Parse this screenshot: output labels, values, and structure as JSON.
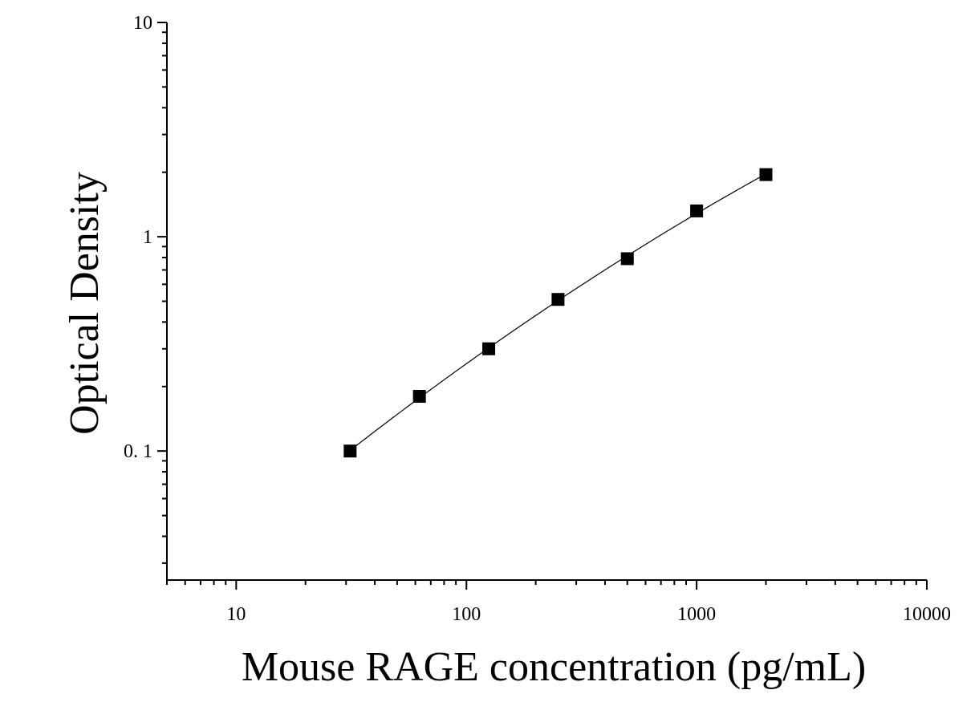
{
  "chart_data": {
    "type": "scatter",
    "xlabel": "Mouse RAGE concentration (pg/mL)",
    "ylabel": "Optical Density",
    "x_scale": "log",
    "y_scale": "log",
    "xlim": [
      5,
      10000
    ],
    "ylim": [
      0.025,
      10
    ],
    "x_ticks": [
      10,
      100,
      1000,
      10000
    ],
    "x_tick_labels": [
      "10",
      "100",
      "1000",
      "10000"
    ],
    "y_ticks": [
      0.1,
      1,
      10
    ],
    "y_tick_labels": [
      "0. 1",
      "1",
      "10"
    ],
    "grid": false,
    "legend": "none",
    "series": [
      {
        "marker": "square",
        "color": "#000000",
        "x": [
          31.25,
          62.5,
          125,
          250,
          500,
          1000,
          2000
        ],
        "y": [
          0.1,
          0.18,
          0.3,
          0.51,
          0.79,
          1.32,
          1.95
        ]
      }
    ],
    "fit_curve": {
      "style": "line",
      "color": "#000000"
    }
  }
}
